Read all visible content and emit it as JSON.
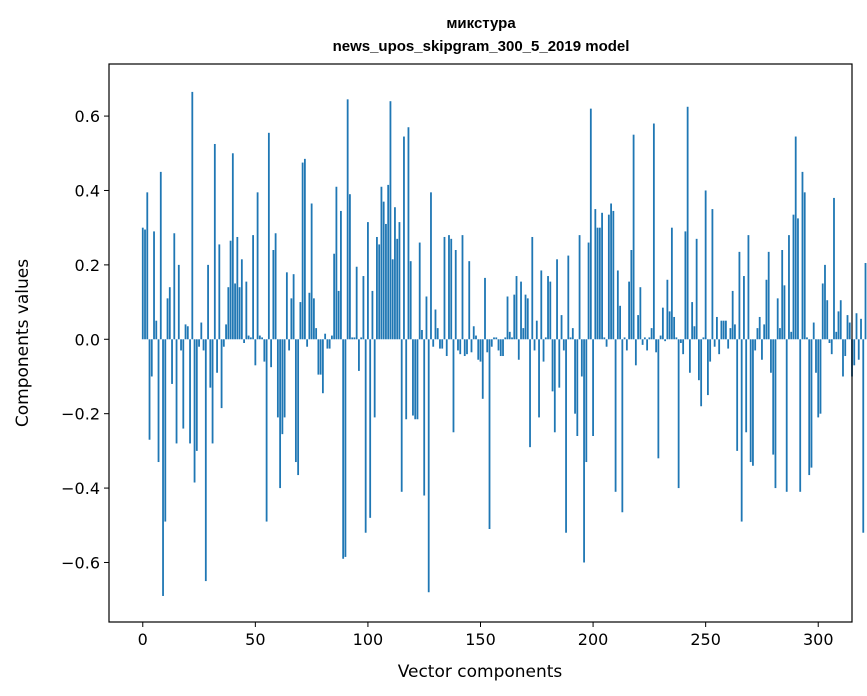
{
  "chart_data": {
    "type": "bar",
    "title": "микстура",
    "subtitle": "news_upos_skipgram_300_5_2019 model",
    "xlabel": "Vector components",
    "ylabel": "Components values",
    "xlim": [
      -15,
      315
    ],
    "ylim": [
      -0.76,
      0.74
    ],
    "xticks": [
      0,
      50,
      100,
      150,
      200,
      250,
      300
    ],
    "yticks": [
      -0.6,
      -0.4,
      -0.2,
      0.0,
      0.2,
      0.4,
      0.6
    ],
    "ytick_labels": [
      "−0.6",
      "−0.4",
      "−0.2",
      "0.0",
      "0.2",
      "0.4",
      "0.6"
    ],
    "color": "#1f77b4",
    "grid": false,
    "values": [
      0.3,
      0.295,
      0.395,
      -0.27,
      -0.1,
      0.29,
      0.05,
      -0.33,
      0.45,
      -0.69,
      -0.49,
      0.11,
      0.14,
      -0.12,
      0.285,
      -0.28,
      0.2,
      -0.03,
      -0.24,
      0.04,
      0.035,
      -0.28,
      0.665,
      -0.385,
      -0.3,
      -0.02,
      0.045,
      -0.03,
      -0.65,
      0.2,
      -0.13,
      -0.28,
      0.525,
      -0.09,
      0.255,
      -0.185,
      -0.02,
      0.04,
      0.14,
      0.265,
      0.5,
      0.15,
      0.275,
      0.14,
      0.215,
      -0.01,
      0.155,
      0.01,
      0.005,
      0.28,
      -0.07,
      0.395,
      0.01,
      0.005,
      -0.06,
      -0.49,
      0.555,
      -0.075,
      0.24,
      0.285,
      -0.21,
      -0.4,
      -0.255,
      -0.21,
      0.18,
      -0.03,
      0.11,
      0.175,
      -0.33,
      -0.365,
      0.1,
      0.475,
      0.485,
      -0.02,
      0.125,
      0.365,
      0.11,
      0.03,
      -0.095,
      -0.095,
      -0.145,
      0.015,
      -0.025,
      -0.025,
      0.01,
      0.23,
      0.41,
      0.13,
      0.345,
      -0.59,
      -0.585,
      0.645,
      0.39,
      0.005,
      0.005,
      0.195,
      -0.085,
      0.005,
      0.17,
      -0.52,
      0.315,
      -0.48,
      0.13,
      -0.21,
      0.275,
      0.255,
      0.41,
      0.37,
      0.31,
      0.415,
      0.64,
      0.215,
      0.355,
      0.27,
      0.315,
      -0.41,
      0.545,
      -0.215,
      0.57,
      0.21,
      -0.205,
      -0.215,
      -0.215,
      0.26,
      0.025,
      -0.42,
      0.115,
      -0.68,
      0.395,
      -0.02,
      0.08,
      0.03,
      -0.025,
      -0.025,
      0.275,
      -0.045,
      0.28,
      0.27,
      -0.25,
      0.24,
      -0.03,
      -0.04,
      0.28,
      -0.045,
      -0.04,
      0.21,
      -0.035,
      0.035,
      0.01,
      -0.055,
      -0.06,
      -0.16,
      0.165,
      -0.035,
      -0.51,
      -0.02,
      0.005,
      0.005,
      -0.03,
      -0.045,
      -0.045,
      0.005,
      0.115,
      0.02,
      0.005,
      0.12,
      0.17,
      -0.055,
      0.155,
      0.03,
      0.12,
      0.11,
      -0.29,
      0.275,
      -0.03,
      0.05,
      -0.21,
      0.185,
      -0.06,
      0.005,
      0.17,
      0.155,
      -0.14,
      -0.25,
      0.215,
      -0.13,
      0.065,
      -0.03,
      -0.52,
      0.225,
      0.005,
      0.03,
      -0.2,
      -0.26,
      0.28,
      -0.1,
      -0.6,
      -0.33,
      0.26,
      0.62,
      -0.26,
      0.35,
      0.3,
      0.3,
      0.34,
      0.005,
      -0.02,
      0.335,
      0.365,
      0.345,
      -0.41,
      0.185,
      0.09,
      -0.465,
      0.005,
      -0.03,
      0.155,
      0.24,
      0.55,
      -0.07,
      0.065,
      0.14,
      -0.015,
      0.005,
      -0.03,
      0.005,
      0.03,
      0.58,
      -0.035,
      -0.32,
      0.01,
      0.085,
      -0.005,
      0.16,
      0.075,
      0.3,
      0.06,
      0.005,
      -0.4,
      -0.01,
      -0.04,
      0.29,
      0.625,
      -0.09,
      0.1,
      0.035,
      0.27,
      -0.11,
      -0.18,
      0.005,
      0.4,
      -0.15,
      -0.06,
      0.35,
      -0.02,
      0.06,
      -0.04,
      0.05,
      0.05,
      0.05,
      -0.025,
      0.03,
      0.13,
      0.04,
      -0.3,
      0.235,
      -0.49,
      0.17,
      -0.25,
      0.28,
      -0.33,
      -0.34,
      -0.03,
      0.03,
      0.06,
      -0.055,
      0.04,
      0.16,
      0.235,
      -0.09,
      -0.31,
      -0.4,
      0.11,
      0.03,
      0.24,
      0.145,
      -0.41,
      0.28,
      0.02,
      0.335,
      0.545,
      0.325,
      -0.41,
      0.45,
      0.395,
      0.005,
      -0.365,
      -0.345,
      0.045,
      -0.09,
      -0.21,
      -0.2,
      0.15,
      0.2,
      0.105,
      -0.01,
      -0.04,
      0.38,
      0.02,
      0.075,
      0.105,
      -0.1,
      -0.045,
      0.065,
      0.045,
      -0.1,
      -0.07,
      0.07,
      -0.055,
      0.055,
      -0.52,
      0.205
    ]
  }
}
